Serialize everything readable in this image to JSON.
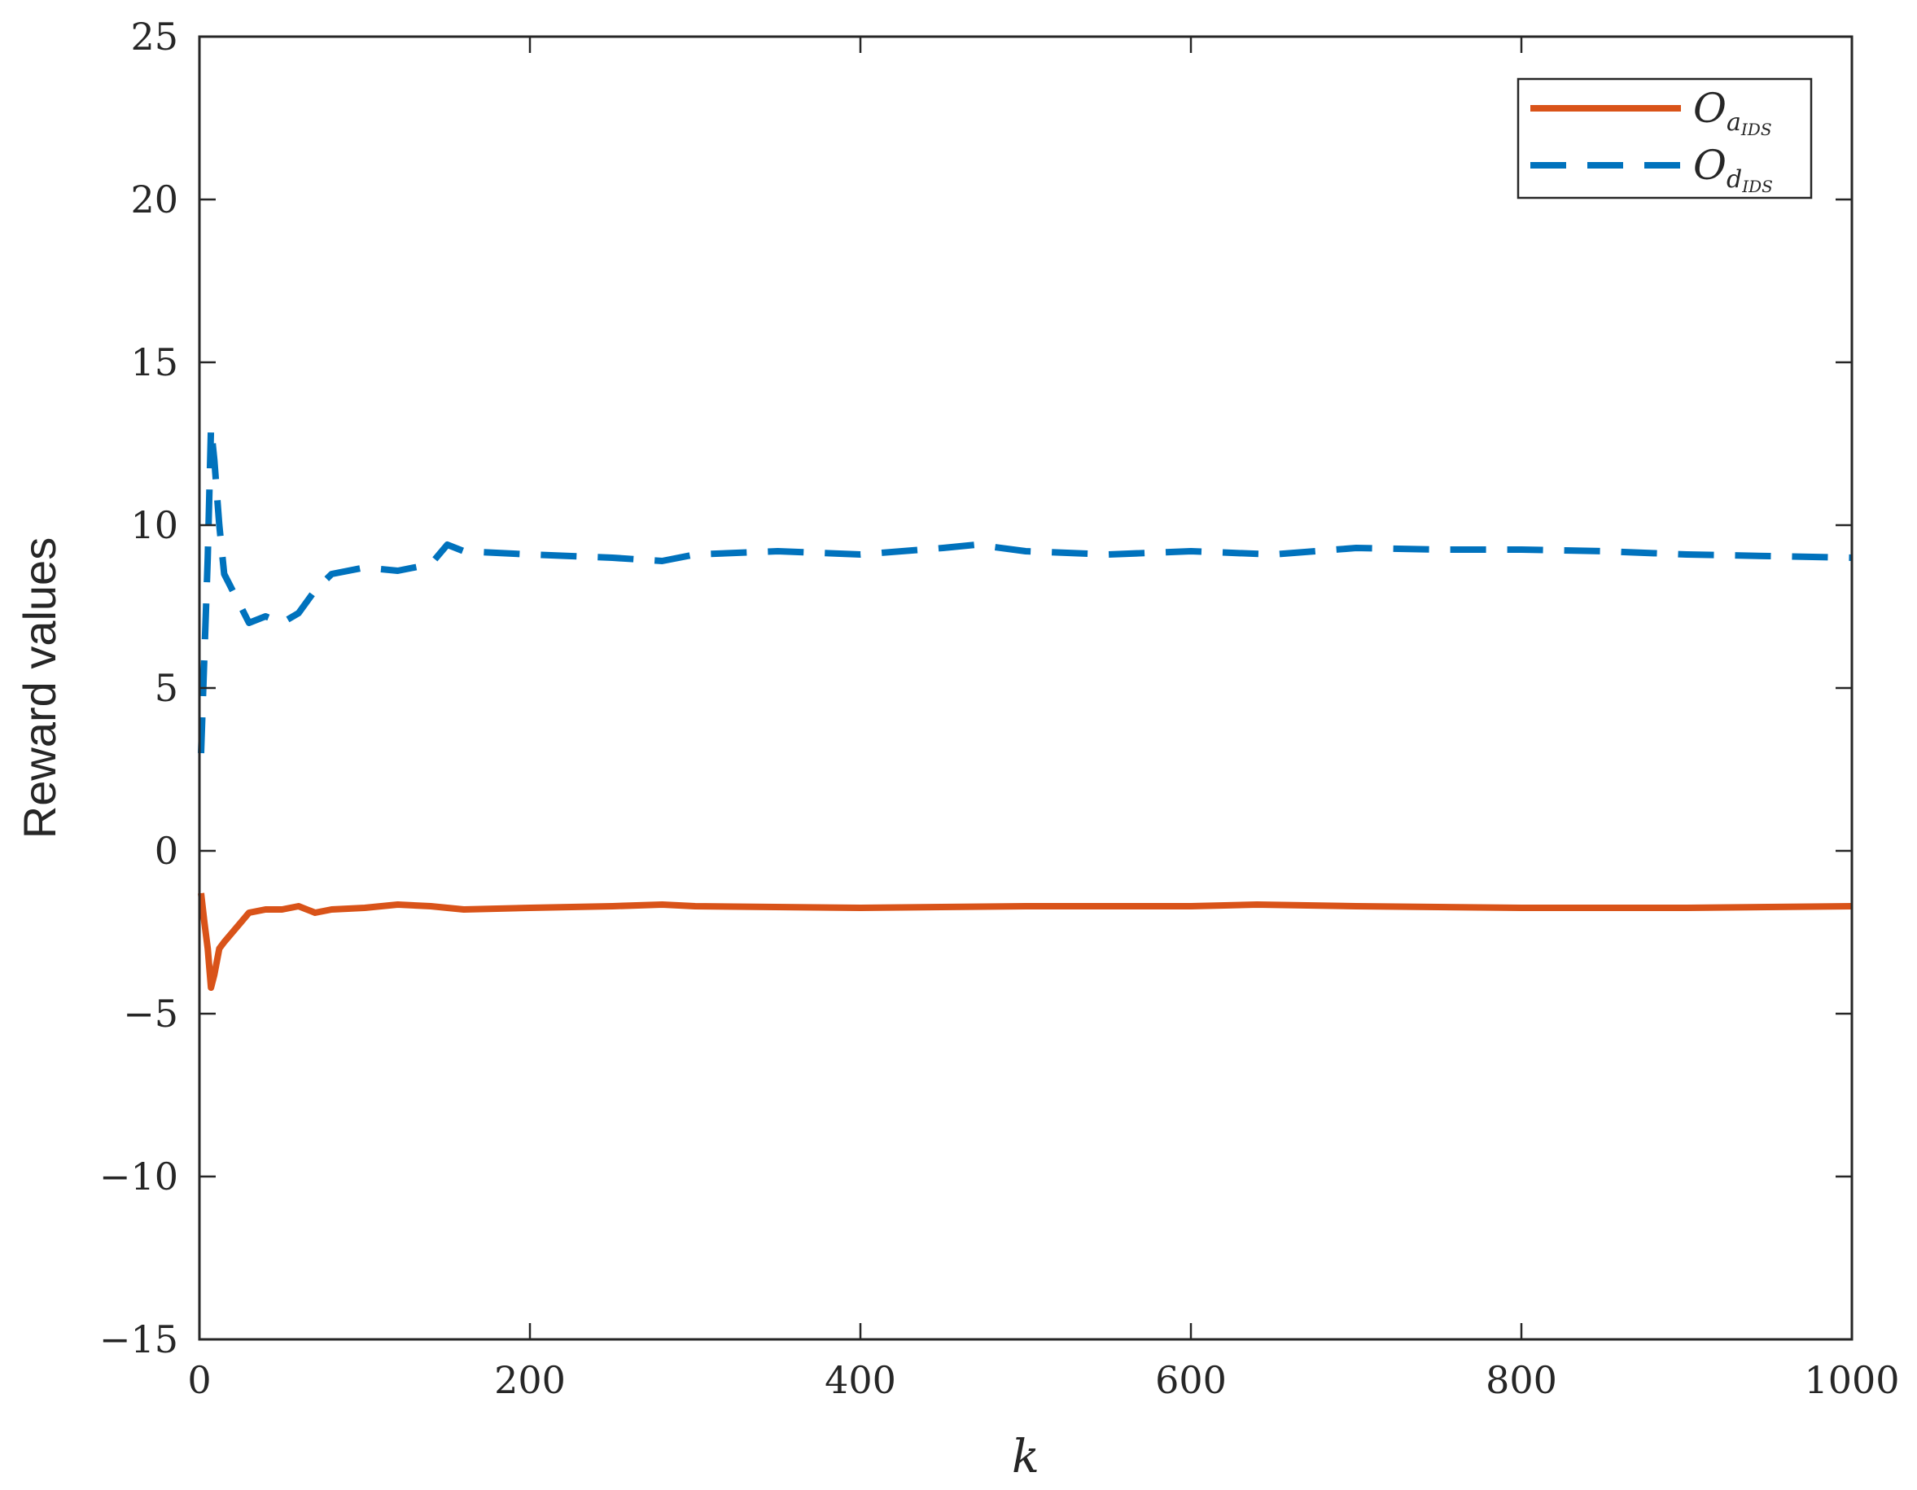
{
  "chart_data": {
    "type": "line",
    "xlabel": "k",
    "ylabel": "Reward values",
    "xlim": [
      0,
      1000
    ],
    "ylim": [
      -15,
      25
    ],
    "xticks": [
      0,
      200,
      400,
      600,
      800,
      1000
    ],
    "xtick_labels": [
      "0",
      "200",
      "400",
      "600",
      "800",
      "1000"
    ],
    "yticks": [
      -15,
      -10,
      -5,
      0,
      5,
      10,
      15,
      20,
      25
    ],
    "ytick_labels": [
      "−15",
      "−10",
      "−5",
      "0",
      "5",
      "10",
      "15",
      "20",
      "25"
    ],
    "grid": false,
    "legend_position": "top-right",
    "series": [
      {
        "name": "O_{a_{IDS}}",
        "legend": {
          "base": "O",
          "sub": "a",
          "subsub": "IDS"
        },
        "color": "#D95319",
        "style": "solid",
        "x": [
          1,
          3,
          5,
          7,
          9,
          12,
          15,
          20,
          25,
          30,
          40,
          50,
          60,
          70,
          80,
          100,
          120,
          140,
          160,
          200,
          250,
          280,
          300,
          400,
          500,
          600,
          640,
          700,
          800,
          900,
          1000
        ],
        "y": [
          -1.3,
          -2.2,
          -3.0,
          -4.2,
          -3.8,
          -3.0,
          -2.8,
          -2.5,
          -2.2,
          -1.9,
          -1.8,
          -1.8,
          -1.7,
          -1.9,
          -1.8,
          -1.75,
          -1.65,
          -1.7,
          -1.8,
          -1.75,
          -1.7,
          -1.65,
          -1.7,
          -1.75,
          -1.7,
          -1.7,
          -1.65,
          -1.7,
          -1.75,
          -1.75,
          -1.7
        ]
      },
      {
        "name": "O_{d_{IDS}}",
        "legend": {
          "base": "O",
          "sub": "d",
          "subsub": "IDS"
        },
        "color": "#0072BD",
        "style": "dashed",
        "x": [
          1,
          3,
          5,
          7,
          9,
          12,
          15,
          20,
          25,
          30,
          40,
          50,
          60,
          70,
          80,
          100,
          120,
          140,
          150,
          160,
          200,
          250,
          280,
          300,
          350,
          400,
          450,
          470,
          500,
          550,
          600,
          650,
          700,
          750,
          800,
          850,
          900,
          950,
          1000
        ],
        "y": [
          3.0,
          6.0,
          9.0,
          13.0,
          12.0,
          10.0,
          8.5,
          8.0,
          7.5,
          7.0,
          7.2,
          7.0,
          7.3,
          8.0,
          8.5,
          8.7,
          8.6,
          8.8,
          9.4,
          9.2,
          9.1,
          9.0,
          8.9,
          9.1,
          9.2,
          9.1,
          9.3,
          9.4,
          9.2,
          9.1,
          9.2,
          9.1,
          9.3,
          9.25,
          9.25,
          9.2,
          9.1,
          9.05,
          9.0
        ]
      }
    ]
  }
}
